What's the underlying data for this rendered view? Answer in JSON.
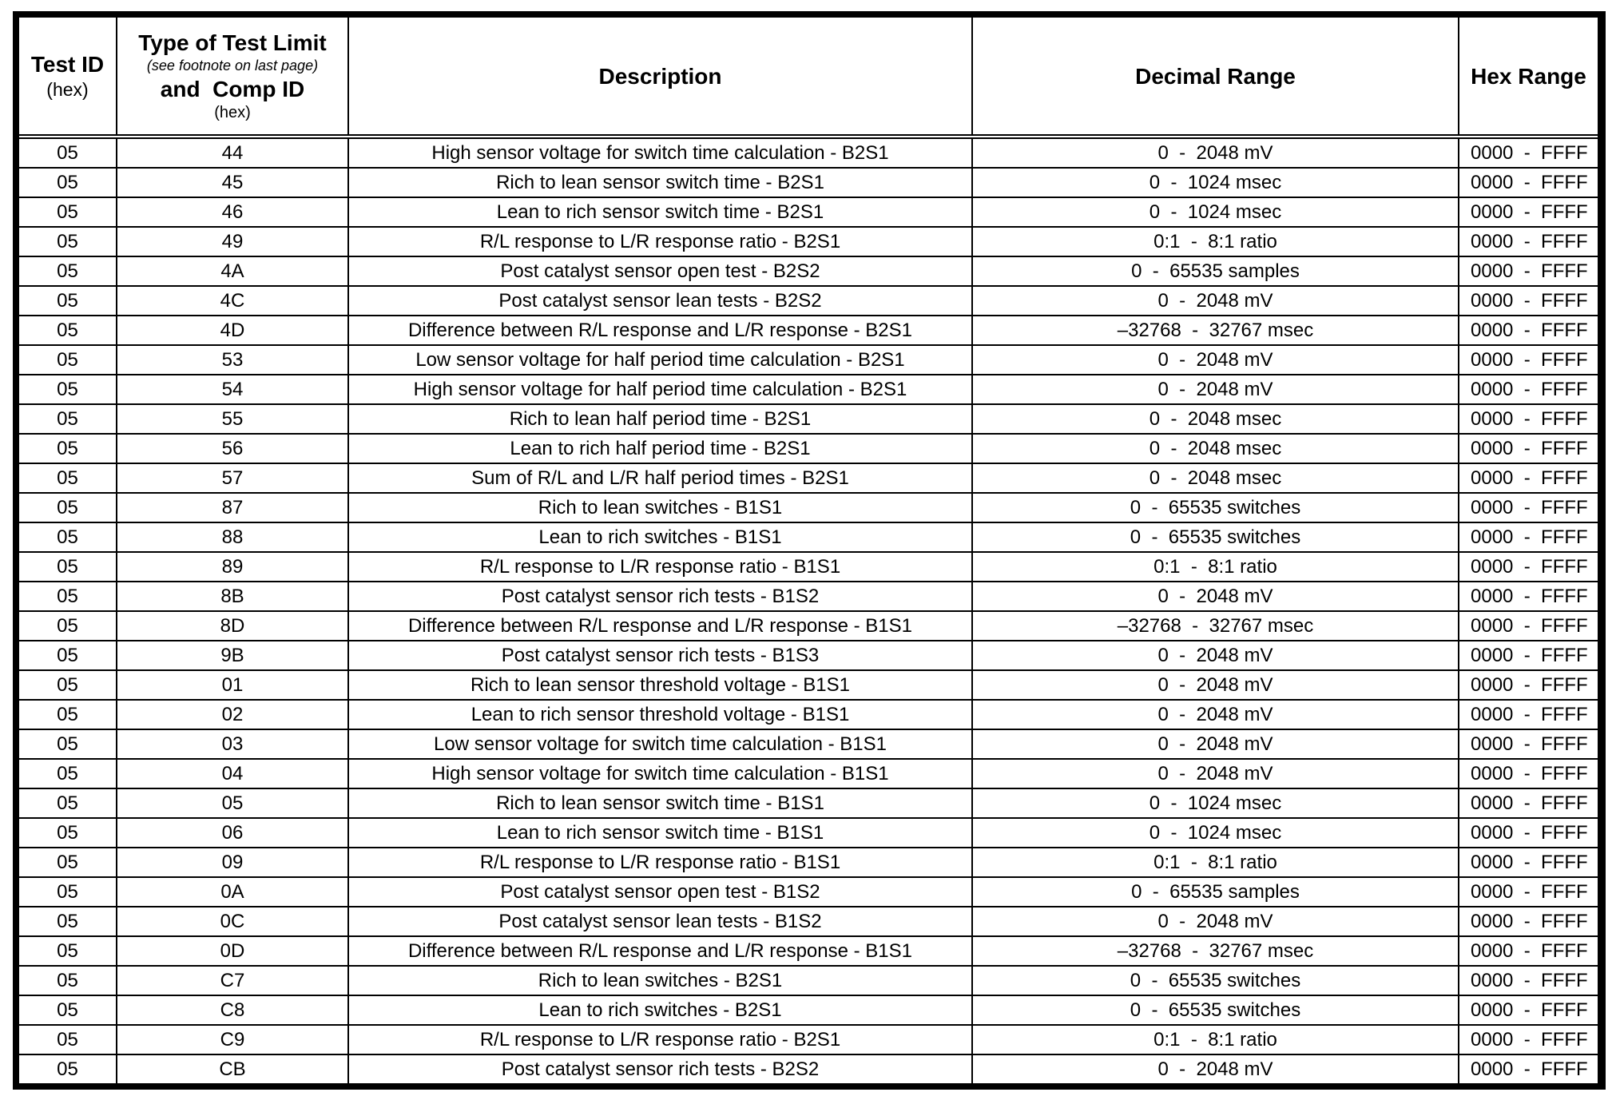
{
  "headers": {
    "test_id": "Test ID",
    "test_id_sub": "(hex)",
    "type_title": "Type of Test Limit",
    "type_note": "(see footnote on last page)",
    "type_comp": "and  Comp ID",
    "type_sub": "(hex)",
    "description": "Description",
    "decimal_range": "Decimal Range",
    "hex_range": "Hex Range"
  },
  "rows": [
    [
      "05",
      "44",
      "High sensor voltage for switch time calculation - B2S1",
      "0  -  2048 mV",
      "0000  -  FFFF"
    ],
    [
      "05",
      "45",
      "Rich to lean sensor switch time - B2S1",
      "0  -  1024 msec",
      "0000  -  FFFF"
    ],
    [
      "05",
      "46",
      "Lean to rich sensor switch time - B2S1",
      "0  -  1024 msec",
      "0000  -  FFFF"
    ],
    [
      "05",
      "49",
      "R/L response to L/R response ratio - B2S1",
      "0:1  -  8:1 ratio",
      "0000  -  FFFF"
    ],
    [
      "05",
      "4A",
      "Post catalyst sensor open test - B2S2",
      "0  -  65535 samples",
      "0000  -  FFFF"
    ],
    [
      "05",
      "4C",
      "Post catalyst sensor lean tests - B2S2",
      "0  -  2048 mV",
      "0000  -  FFFF"
    ],
    [
      "05",
      "4D",
      "Difference between R/L response and L/R response - B2S1",
      "–32768  -  32767 msec",
      "0000  -  FFFF"
    ],
    [
      "05",
      "53",
      "Low sensor voltage for half period time calculation - B2S1",
      "0  -  2048 mV",
      "0000  -  FFFF"
    ],
    [
      "05",
      "54",
      "High sensor voltage for half period time calculation - B2S1",
      "0  -  2048 mV",
      "0000  -  FFFF"
    ],
    [
      "05",
      "55",
      "Rich to lean half period time - B2S1",
      "0  -  2048 msec",
      "0000  -  FFFF"
    ],
    [
      "05",
      "56",
      "Lean to rich half period time - B2S1",
      "0  -  2048 msec",
      "0000  -  FFFF"
    ],
    [
      "05",
      "57",
      "Sum of R/L and L/R half period times - B2S1",
      "0  -  2048 msec",
      "0000  -  FFFF"
    ],
    [
      "05",
      "87",
      "Rich to lean switches - B1S1",
      "0  -  65535 switches",
      "0000  -  FFFF"
    ],
    [
      "05",
      "88",
      "Lean to rich switches - B1S1",
      "0  -  65535 switches",
      "0000  -  FFFF"
    ],
    [
      "05",
      "89",
      "R/L response to L/R response ratio - B1S1",
      "0:1  -  8:1 ratio",
      "0000  -  FFFF"
    ],
    [
      "05",
      "8B",
      "Post catalyst sensor rich tests - B1S2",
      "0  -  2048 mV",
      "0000  -  FFFF"
    ],
    [
      "05",
      "8D",
      "Difference between R/L response and L/R response - B1S1",
      "–32768  -  32767 msec",
      "0000  -  FFFF"
    ],
    [
      "05",
      "9B",
      "Post catalyst sensor rich tests - B1S3",
      "0  -  2048 mV",
      "0000  -  FFFF"
    ],
    [
      "05",
      "01",
      "Rich to lean sensor threshold voltage - B1S1",
      "0  -  2048 mV",
      "0000  -  FFFF"
    ],
    [
      "05",
      "02",
      "Lean to rich sensor threshold voltage - B1S1",
      "0  -  2048 mV",
      "0000  -  FFFF"
    ],
    [
      "05",
      "03",
      "Low sensor voltage for switch time calculation - B1S1",
      "0  -  2048 mV",
      "0000  -  FFFF"
    ],
    [
      "05",
      "04",
      "High sensor voltage for switch time calculation - B1S1",
      "0  -  2048 mV",
      "0000  -  FFFF"
    ],
    [
      "05",
      "05",
      "Rich to lean sensor switch time - B1S1",
      "0  -  1024 msec",
      "0000  -  FFFF"
    ],
    [
      "05",
      "06",
      "Lean to rich sensor switch time - B1S1",
      "0  -  1024 msec",
      "0000  -  FFFF"
    ],
    [
      "05",
      "09",
      "R/L response to L/R response ratio - B1S1",
      "0:1  -  8:1 ratio",
      "0000  -  FFFF"
    ],
    [
      "05",
      "0A",
      "Post catalyst sensor open test - B1S2",
      "0  -  65535 samples",
      "0000  -  FFFF"
    ],
    [
      "05",
      "0C",
      "Post catalyst sensor lean tests - B1S2",
      "0  -  2048 mV",
      "0000  -  FFFF"
    ],
    [
      "05",
      "0D",
      "Difference between R/L response and L/R response - B1S1",
      "–32768  -  32767 msec",
      "0000  -  FFFF"
    ],
    [
      "05",
      "C7",
      "Rich to lean switches - B2S1",
      "0  -  65535 switches",
      "0000  -  FFFF"
    ],
    [
      "05",
      "C8",
      "Lean to rich switches - B2S1",
      "0  -  65535 switches",
      "0000  -  FFFF"
    ],
    [
      "05",
      "C9",
      "R/L response to L/R response ratio - B2S1",
      "0:1  -  8:1 ratio",
      "0000  -  FFFF"
    ],
    [
      "05",
      "CB",
      "Post catalyst sensor rich tests - B2S2",
      "0  -  2048 mV",
      "0000  -  FFFF"
    ]
  ]
}
